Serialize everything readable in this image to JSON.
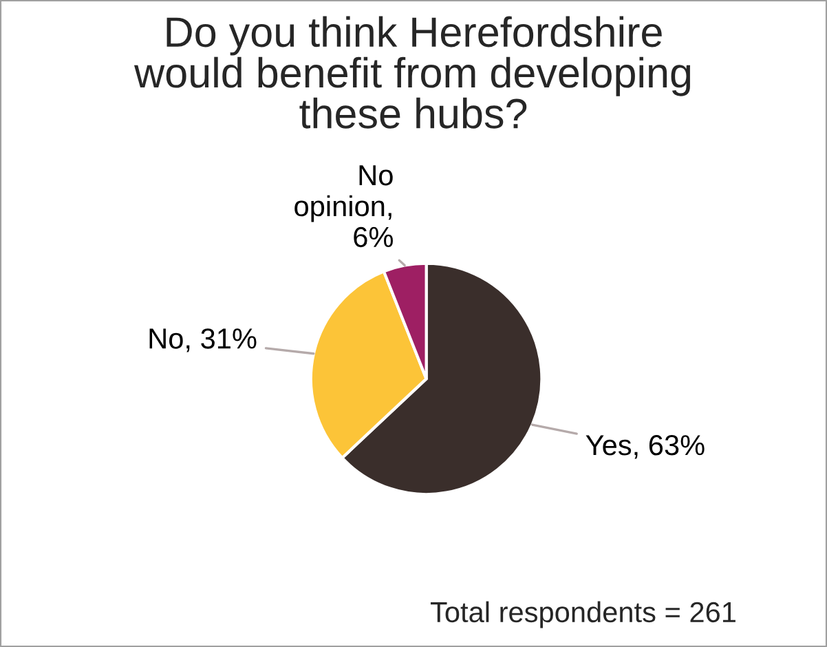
{
  "chart_data": {
    "type": "pie",
    "title": "Do you think Herefordshire would benefit from developing these hubs?",
    "categories": [
      "Yes",
      "No",
      "No opinion"
    ],
    "values": [
      63,
      31,
      6
    ],
    "colors": [
      "#3a2e2b",
      "#fcc438",
      "#9e1f63"
    ],
    "value_labels": [
      ", 63%",
      ", 31%",
      ", 6%"
    ],
    "annotations": [
      "Total respondents = 261"
    ]
  }
}
